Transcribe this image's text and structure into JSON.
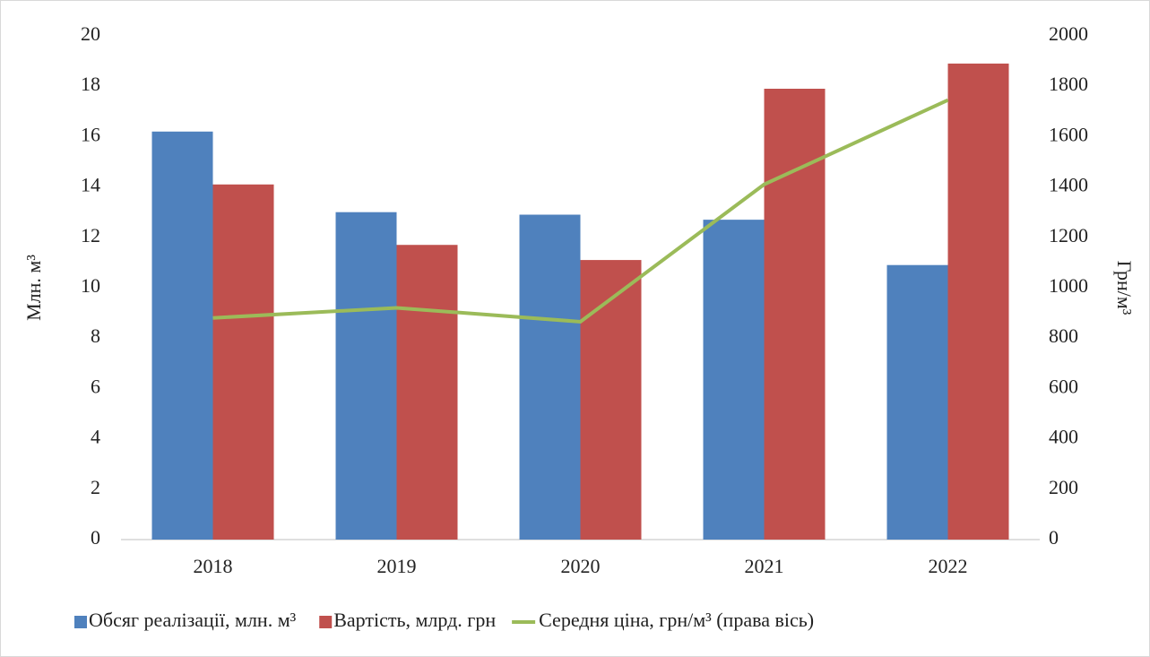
{
  "chart_data": {
    "type": "bar_line",
    "categories": [
      "2018",
      "2019",
      "2020",
      "2021",
      "2022"
    ],
    "series": [
      {
        "name": "Обсяг реалізації, млн. м³",
        "color": "#4f81bd",
        "type": "bar",
        "values": [
          16.2,
          13.0,
          12.9,
          12.7,
          10.9
        ]
      },
      {
        "name": "Вартість, млрд. грн",
        "color": "#c0504d",
        "type": "bar",
        "values": [
          14.1,
          11.7,
          11.1,
          17.9,
          18.9
        ]
      },
      {
        "name": "Середня ціна, грн/м³ (права вісь)",
        "color": "#9bbb59",
        "type": "line",
        "axis": "y2",
        "values": [
          880,
          920,
          865,
          1410,
          1745
        ]
      }
    ],
    "ylabel": "Млн. м³",
    "y2label": "Грн/м³",
    "ylim": [
      0,
      20
    ],
    "yticks": [
      0,
      2,
      4,
      6,
      8,
      10,
      12,
      14,
      16,
      18,
      20
    ],
    "y2lim": [
      0,
      2000
    ],
    "y2ticks": [
      0,
      200,
      400,
      600,
      800,
      1000,
      1200,
      1400,
      1600,
      1800,
      2000
    ],
    "legend": "bottom"
  }
}
